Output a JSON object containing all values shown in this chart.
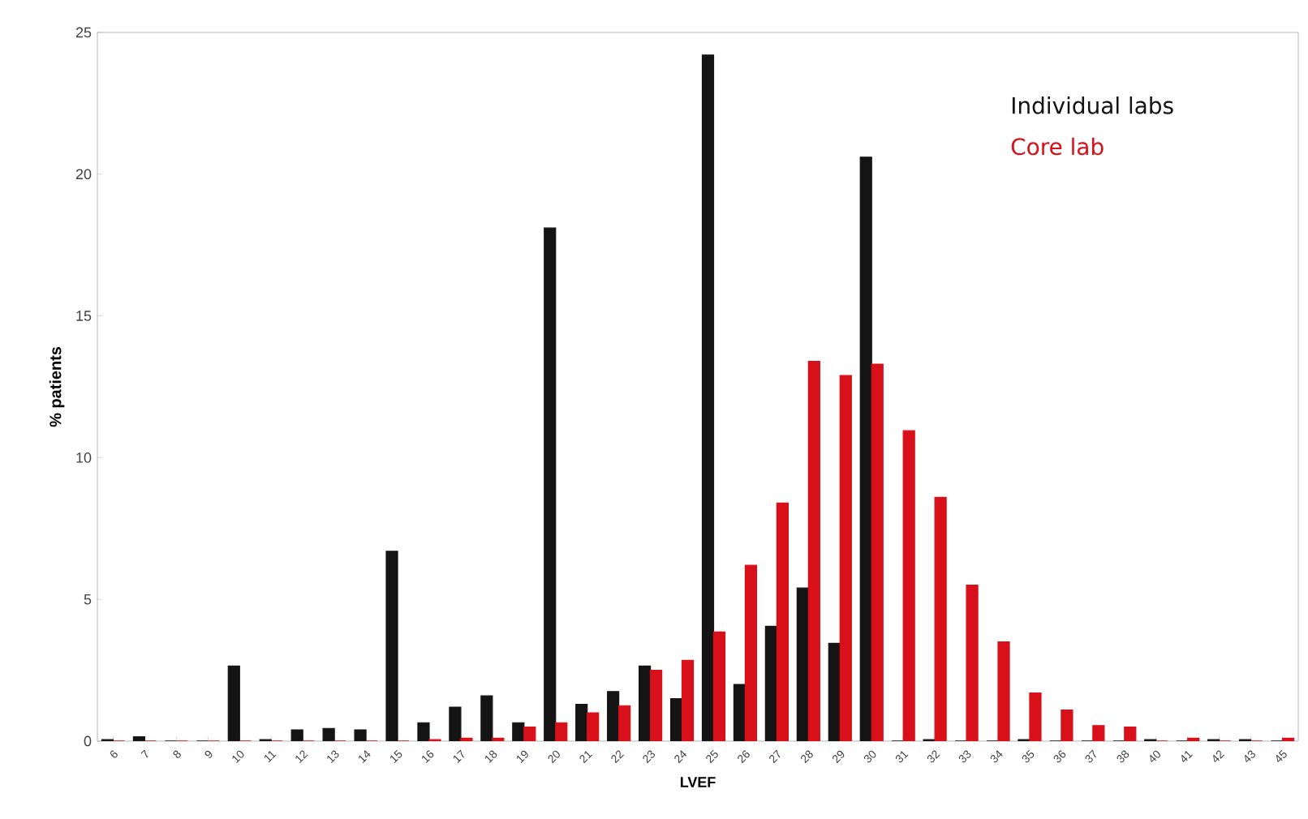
{
  "chart_data": {
    "type": "bar",
    "xlabel": "LVEF",
    "ylabel": "% patients",
    "categories": [
      "6",
      "7",
      "8",
      "9",
      "10",
      "11",
      "12",
      "13",
      "14",
      "15",
      "16",
      "17",
      "18",
      "19",
      "20",
      "21",
      "22",
      "23",
      "24",
      "25",
      "26",
      "27",
      "28",
      "29",
      "30",
      "31",
      "32",
      "33",
      "34",
      "35",
      "36",
      "37",
      "38",
      "40",
      "41",
      "42",
      "43",
      "45"
    ],
    "series": [
      {
        "name": "Individual labs",
        "color": "#141414",
        "values": [
          0.05,
          0.15,
          0,
          0,
          2.65,
          0.05,
          0.4,
          0.45,
          0.4,
          6.7,
          0.65,
          1.2,
          1.6,
          0.65,
          18.1,
          1.3,
          1.75,
          2.65,
          1.5,
          24.2,
          2.0,
          4.05,
          5.4,
          3.45,
          20.6,
          0,
          0.05,
          0,
          0,
          0.05,
          0,
          0,
          0,
          0.05,
          0,
          0.05,
          0.05,
          0
        ]
      },
      {
        "name": "Core lab",
        "color": "#d7101a",
        "values": [
          0,
          0,
          0,
          0,
          0,
          0,
          0,
          0,
          0,
          0,
          0.05,
          0.1,
          0.1,
          0.5,
          0.65,
          1.0,
          1.25,
          2.5,
          2.85,
          3.85,
          6.2,
          8.4,
          13.4,
          12.9,
          13.3,
          10.95,
          8.6,
          5.5,
          3.5,
          1.7,
          1.1,
          0.55,
          0.5,
          0,
          0.1,
          0,
          0,
          0.1
        ]
      }
    ],
    "ylim": [
      0,
      25
    ],
    "yticks": [
      0,
      5,
      10,
      15,
      20,
      25
    ],
    "grid": false,
    "legend": "top right"
  }
}
